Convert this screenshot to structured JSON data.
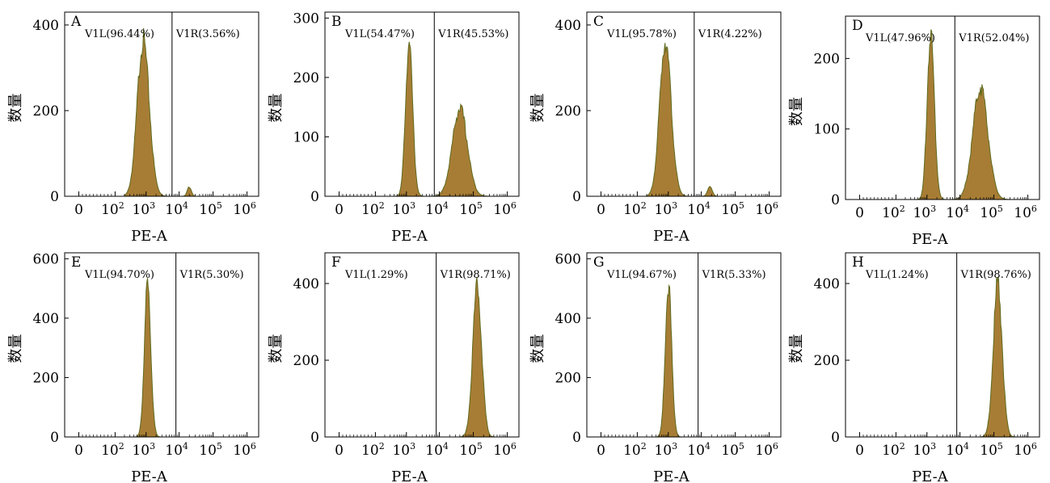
{
  "colors": {
    "fill": "#a77d35",
    "outline": "#5f6a1e",
    "frame": "#000000"
  },
  "chart_data": [
    {
      "type": "area",
      "panel": "A",
      "title": "",
      "xlabel": "PE-A",
      "ylabel": "数量",
      "x_scale": "log",
      "x_ticks": [
        "0",
        "10^2",
        "10^3",
        "10^4",
        "10^5",
        "10^6"
      ],
      "y_ticks": [
        0,
        200,
        400
      ],
      "ylim": [
        0,
        430
      ],
      "gate_x": 6100.0,
      "gates": [
        "V1L(96.44%)",
        "V1R(3.56%)"
      ],
      "peaks": [
        {
          "center": 800.0,
          "height": 365,
          "spread": 0.19
        },
        {
          "center": 20000.0,
          "height": 22,
          "spread": 0.06
        }
      ]
    },
    {
      "type": "area",
      "panel": "B",
      "title": "",
      "xlabel": "PE-A",
      "ylabel": "数量",
      "x_scale": "log",
      "x_ticks": [
        "0",
        "10^2",
        "10^3",
        "10^4",
        "10^5",
        "10^6"
      ],
      "y_ticks": [
        0,
        100,
        200,
        300
      ],
      "ylim": [
        0,
        310
      ],
      "gate_x": 7000.0,
      "gates": [
        "V1L(54.47%)",
        "V1R(45.53%)"
      ],
      "peaks": [
        {
          "center": 1200.0,
          "height": 255,
          "spread": 0.11
        },
        {
          "center": 40000.0,
          "height": 148,
          "spread": 0.22
        }
      ]
    },
    {
      "type": "area",
      "panel": "C",
      "title": "",
      "xlabel": "PE-A",
      "ylabel": "数量",
      "x_scale": "log",
      "x_ticks": [
        "0",
        "10^2",
        "10^3",
        "10^4",
        "10^5",
        "10^6"
      ],
      "y_ticks": [
        0,
        200,
        400
      ],
      "ylim": [
        0,
        430
      ],
      "gate_x": 6100.0,
      "gates": [
        "V1L(95.78%)",
        "V1R(4.22%)"
      ],
      "peaks": [
        {
          "center": 800.0,
          "height": 365,
          "spread": 0.18
        },
        {
          "center": 18000.0,
          "height": 22,
          "spread": 0.07
        }
      ]
    },
    {
      "type": "area",
      "panel": "D",
      "title": "",
      "xlabel": "PE-A",
      "ylabel": "数量",
      "x_scale": "log",
      "x_ticks": [
        "0",
        "10^2",
        "10^3",
        "10^4",
        "10^5",
        "10^6"
      ],
      "y_ticks": [
        0,
        100,
        200
      ],
      "ylim": [
        0,
        260
      ],
      "gate_x": 7000.0,
      "gates": [
        "V1L(47.96%)",
        "V1R(52.04%)"
      ],
      "peaks": [
        {
          "center": 1300.0,
          "height": 235,
          "spread": 0.11
        },
        {
          "center": 40000.0,
          "height": 160,
          "spread": 0.22
        }
      ]
    },
    {
      "type": "area",
      "panel": "E",
      "title": "",
      "xlabel": "PE-A",
      "ylabel": "数量",
      "x_scale": "log",
      "x_ticks": [
        "0",
        "10^2",
        "10^3",
        "10^4",
        "10^5",
        "10^6"
      ],
      "y_ticks": [
        0,
        200,
        400,
        600
      ],
      "ylim": [
        0,
        620
      ],
      "gate_x": 8000.0,
      "gates": [
        "V1L(94.70%)",
        "V1R(5.30%)"
      ],
      "peaks": [
        {
          "center": 1100.0,
          "height": 505,
          "spread": 0.1
        }
      ]
    },
    {
      "type": "area",
      "panel": "F",
      "title": "",
      "xlabel": "PE-A",
      "ylabel": "数量",
      "x_scale": "log",
      "x_ticks": [
        "0",
        "10^2",
        "10^3",
        "10^4",
        "10^5",
        "10^6"
      ],
      "y_ticks": [
        0,
        200,
        400
      ],
      "ylim": [
        0,
        480
      ],
      "gate_x": 8000.0,
      "gates": [
        "V1L(1.29%)",
        "V1R(98.71%)"
      ],
      "peaks": [
        {
          "center": 130000.0,
          "height": 395,
          "spread": 0.13
        }
      ]
    },
    {
      "type": "area",
      "panel": "G",
      "title": "",
      "xlabel": "PE-A",
      "ylabel": "数量",
      "x_scale": "log",
      "x_ticks": [
        "0",
        "10^2",
        "10^3",
        "10^4",
        "10^5",
        "10^6"
      ],
      "y_ticks": [
        0,
        200,
        400,
        600
      ],
      "ylim": [
        0,
        620
      ],
      "gate_x": 8000.0,
      "gates": [
        "V1L(94.67%)",
        "V1R(5.33%)"
      ],
      "peaks": [
        {
          "center": 1000.0,
          "height": 510,
          "spread": 0.1
        }
      ]
    },
    {
      "type": "area",
      "panel": "H",
      "title": "",
      "xlabel": "PE-A",
      "ylabel": "数量",
      "x_scale": "log",
      "x_ticks": [
        "0",
        "10^2",
        "10^3",
        "10^4",
        "10^5",
        "10^6"
      ],
      "y_ticks": [
        0,
        200,
        400
      ],
      "ylim": [
        0,
        480
      ],
      "gate_x": 8000.0,
      "gates": [
        "V1L(1.24%)",
        "V1R(98.76%)"
      ],
      "peaks": [
        {
          "center": 130000.0,
          "height": 400,
          "spread": 0.13
        }
      ]
    }
  ]
}
